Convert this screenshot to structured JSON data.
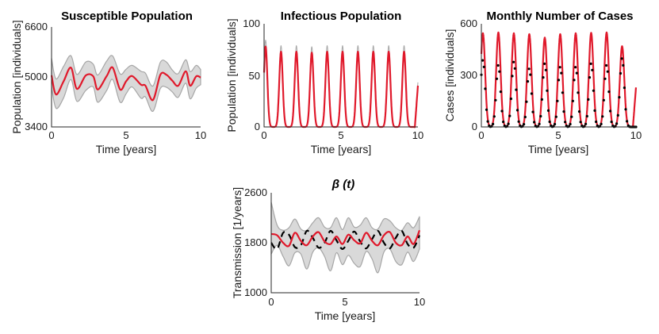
{
  "colors": {
    "mean": "#e0192b",
    "band": "#d9d9d9",
    "band_edge": "#a6a6a6",
    "observed": "#000000"
  },
  "chart_data": [
    {
      "id": "susceptible",
      "type": "area",
      "title": "Susceptible Population",
      "xlabel": "Time [years]",
      "ylabel": "Population [individuals]",
      "xlim": [
        0,
        10
      ],
      "ylim": [
        3400,
        6600
      ],
      "xticks": [
        0,
        5,
        10
      ],
      "yticks": [
        3400,
        5000,
        6600
      ],
      "x": [
        0,
        0.3,
        0.8,
        1.3,
        1.7,
        2.3,
        2.8,
        3.1,
        3.7,
        4.1,
        4.6,
        5,
        5.4,
        6.0,
        6.3,
        6.8,
        7.3,
        7.7,
        8.1,
        8.5,
        9.0,
        9.3,
        9.7,
        10
      ],
      "series": [
        {
          "name": "mean",
          "values": [
            5050,
            4440,
            4850,
            5300,
            4620,
            5050,
            5020,
            4600,
            5030,
            5300,
            4600,
            4860,
            5030,
            4750,
            4720,
            4260,
            5070,
            5070,
            4880,
            4720,
            5180,
            4720,
            5020,
            4980
          ]
        },
        {
          "name": "upper",
          "values": [
            5600,
            4940,
            5330,
            5680,
            5080,
            5480,
            5410,
            5060,
            5510,
            5670,
            5100,
            5250,
            5370,
            5180,
            5120,
            4710,
            5470,
            5480,
            5220,
            5110,
            5550,
            5170,
            5370,
            5240
          ]
        },
        {
          "name": "lower",
          "values": [
            4700,
            4000,
            4320,
            4920,
            4220,
            4570,
            4680,
            4190,
            4570,
            4920,
            4190,
            4460,
            4680,
            4320,
            4360,
            3900,
            4630,
            4670,
            4520,
            4350,
            4800,
            4300,
            4640,
            4750
          ]
        }
      ]
    },
    {
      "id": "infectious",
      "type": "line",
      "title": "Infectious Population",
      "xlabel": "Time [years]",
      "ylabel": "Population [individuals]",
      "xlim": [
        0,
        10
      ],
      "ylim": [
        0,
        100
      ],
      "xticks": [
        0,
        5,
        10
      ],
      "yticks": [
        0,
        50,
        100
      ],
      "peaks_x": [
        0.1,
        1.1,
        2.1,
        3.1,
        4.1,
        5.1,
        6.1,
        7.1,
        8.1,
        9.1
      ],
      "peaks_y": [
        78,
        73,
        73,
        72,
        73,
        73,
        73,
        73,
        73,
        73
      ],
      "end_value": 40,
      "band_max": 85
    },
    {
      "id": "cases",
      "type": "line",
      "title": "Monthly Number of Cases",
      "xlabel": "Time [years]",
      "ylabel": "Cases [individuals]",
      "xlim": [
        0,
        10
      ],
      "ylim": [
        0,
        600
      ],
      "xticks": [
        0,
        5,
        10
      ],
      "yticks": [
        0,
        300,
        600
      ],
      "peaks_x": [
        0.1,
        1.1,
        2.1,
        3.1,
        4.1,
        5.1,
        6.1,
        7.1,
        8.1,
        9.1
      ],
      "model_peaks": [
        545,
        550,
        545,
        540,
        520,
        540,
        545,
        548,
        550,
        470
      ],
      "observed_peaks": [
        390,
        360,
        380,
        340,
        370,
        350,
        350,
        370,
        360,
        400
      ],
      "end_value": 230
    },
    {
      "id": "beta",
      "type": "line",
      "title": "β (t)",
      "xlabel": "Time [years]",
      "ylabel": "Transmission [1/years]",
      "xlim": [
        0,
        10
      ],
      "ylim": [
        1000,
        2600
      ],
      "xticks": [
        0,
        5,
        10
      ],
      "yticks": [
        1000,
        1800,
        2600
      ],
      "x": [
        0,
        0.4,
        0.8,
        1.2,
        1.6,
        2.0,
        2.4,
        2.8,
        3.2,
        3.6,
        4.0,
        4.4,
        4.8,
        5.2,
        5.6,
        6.0,
        6.4,
        6.8,
        7.2,
        7.6,
        8.0,
        8.4,
        8.8,
        9.2,
        9.6,
        10
      ],
      "series": [
        {
          "name": "estimate",
          "values": [
            1940,
            1920,
            1800,
            1750,
            1960,
            1830,
            1760,
            1900,
            1970,
            1820,
            1780,
            1900,
            1780,
            1930,
            1840,
            1790,
            1960,
            1830,
            1760,
            1920,
            1970,
            1800,
            1760,
            1900,
            1780,
            2000
          ]
        },
        {
          "name": "upper",
          "values": [
            2450,
            2080,
            2000,
            2040,
            2180,
            2020,
            2000,
            2120,
            2200,
            2050,
            2040,
            2200,
            2010,
            2200,
            2050,
            2080,
            2200,
            2040,
            2020,
            2180,
            2150,
            2040,
            2000,
            2120,
            2040,
            2220
          ]
        },
        {
          "name": "lower",
          "values": [
            1620,
            1760,
            1580,
            1430,
            1640,
            1620,
            1380,
            1650,
            1720,
            1580,
            1350,
            1640,
            1450,
            1600,
            1470,
            1420,
            1660,
            1540,
            1320,
            1650,
            1700,
            1500,
            1450,
            1650,
            1500,
            1700
          ]
        },
        {
          "name": "true",
          "values": [
            1800,
            1700,
            1960,
            1930,
            1730,
            1760,
            1990,
            1880,
            1720,
            1800,
            1990,
            1840,
            1700,
            1830,
            1980,
            1820,
            1710,
            1860,
            1990,
            1800,
            1710,
            1880,
            1990,
            1780,
            1720,
            1920
          ]
        }
      ]
    }
  ]
}
